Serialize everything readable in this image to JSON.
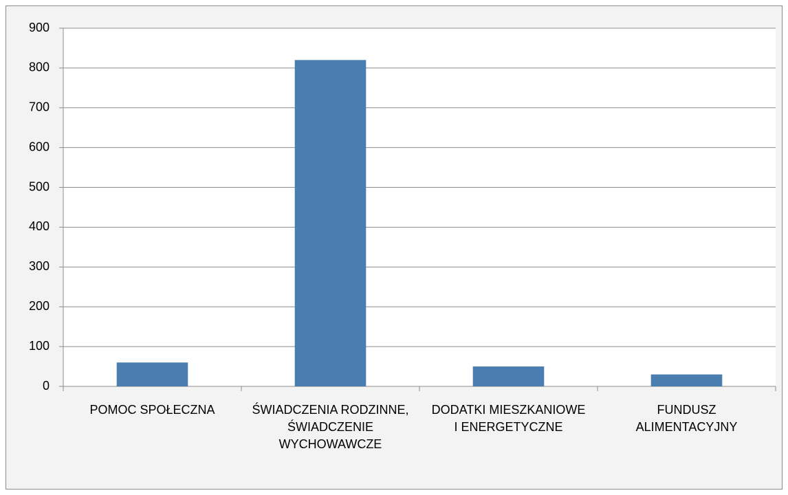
{
  "chart_data": {
    "type": "bar",
    "categories": [
      "POMOC SPOŁECZNA",
      "ŚWIADCZENIA RODZINNE, ŚWIADCZENIE WYCHOWAWCZE",
      "DODATKI MIESZKANIOWE I ENERGETYCZNE",
      "FUNDUSZ ALIMENTACYJNY"
    ],
    "values": [
      60,
      820,
      50,
      30
    ],
    "color": "#4a7eb0",
    "ylim": [
      0,
      900
    ],
    "yticks": [
      0,
      100,
      200,
      300,
      400,
      500,
      600,
      700,
      800,
      900
    ],
    "grid": true
  }
}
